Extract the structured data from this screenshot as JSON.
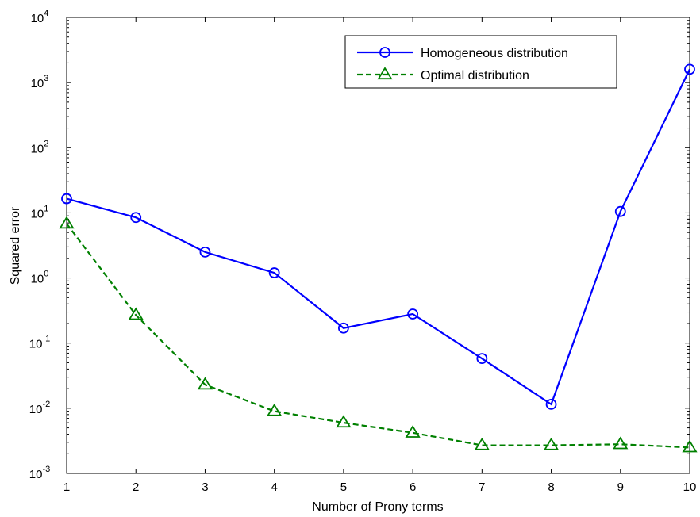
{
  "chart_data": {
    "type": "line",
    "title": "",
    "xlabel": "Number of Prony terms",
    "ylabel": "Squared error",
    "xlim": [
      1,
      10
    ],
    "ylim": [
      0.001,
      10000
    ],
    "yscale": "log",
    "grid": false,
    "legend_position": "top-right",
    "x": [
      1,
      2,
      3,
      4,
      5,
      6,
      7,
      8,
      9,
      10
    ],
    "xticks": [
      "1",
      "2",
      "3",
      "4",
      "5",
      "6",
      "7",
      "8",
      "9",
      "10"
    ],
    "yticks": [
      {
        "base": "10",
        "exp": "-3"
      },
      {
        "base": "10",
        "exp": "-2"
      },
      {
        "base": "10",
        "exp": "-1"
      },
      {
        "base": "10",
        "exp": "0"
      },
      {
        "base": "10",
        "exp": "1"
      },
      {
        "base": "10",
        "exp": "2"
      },
      {
        "base": "10",
        "exp": "3"
      },
      {
        "base": "10",
        "exp": "4"
      }
    ],
    "series": [
      {
        "name": "Homogeneous distribution",
        "color": "#0000ff",
        "line_style": "solid",
        "marker": "circle",
        "values": [
          16.5,
          8.5,
          2.5,
          1.2,
          0.17,
          0.28,
          0.058,
          0.0115,
          10.5,
          1600
        ]
      },
      {
        "name": "Optimal distribution",
        "color": "#008000",
        "line_style": "dashed",
        "marker": "triangle",
        "values": [
          6.8,
          0.27,
          0.023,
          0.009,
          0.006,
          0.0042,
          0.0027,
          0.0027,
          0.0028,
          0.0025
        ]
      }
    ]
  }
}
